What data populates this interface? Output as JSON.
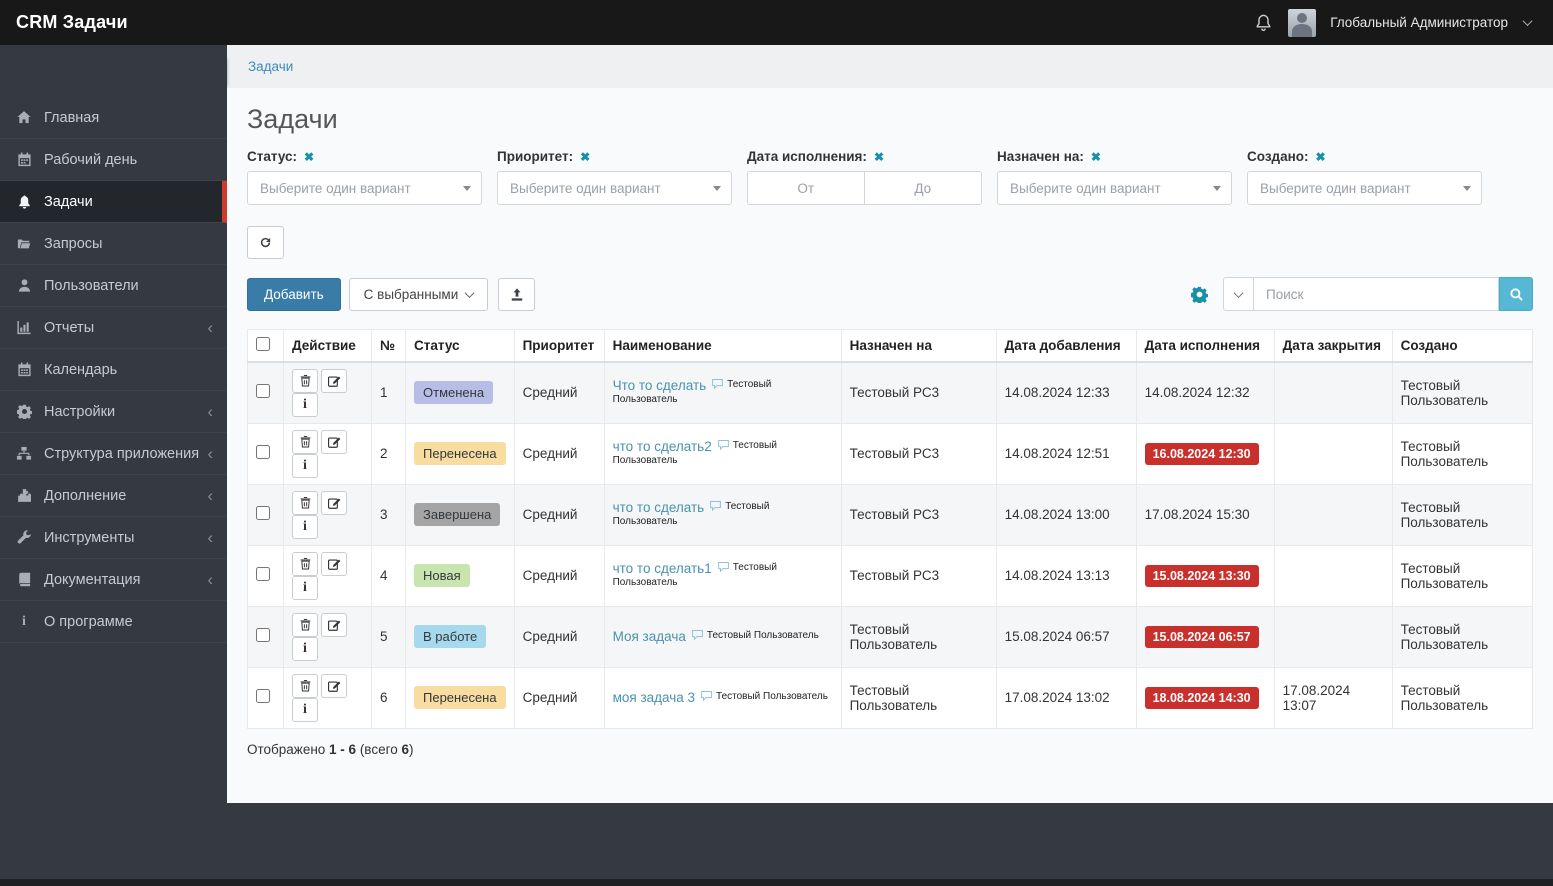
{
  "topbar": {
    "app_title": "CRM Задачи",
    "user_name": "Глобальный Администратор"
  },
  "sidebar": {
    "items": [
      {
        "label": "Главная",
        "icon": "home-icon",
        "active": false,
        "expandable": false
      },
      {
        "label": "Рабочий день",
        "icon": "calendar-day-icon",
        "active": false,
        "expandable": false
      },
      {
        "label": "Задачи",
        "icon": "bell-icon",
        "active": true,
        "expandable": false
      },
      {
        "label": "Запросы",
        "icon": "folder-open-icon",
        "active": false,
        "expandable": false
      },
      {
        "label": "Пользователи",
        "icon": "user-icon",
        "active": false,
        "expandable": false
      },
      {
        "label": "Отчеты",
        "icon": "bar-chart-icon",
        "active": false,
        "expandable": true
      },
      {
        "label": "Календарь",
        "icon": "calendar-icon",
        "active": false,
        "expandable": false
      },
      {
        "label": "Настройки",
        "icon": "gear-icon",
        "active": false,
        "expandable": true
      },
      {
        "label": "Структура приложения",
        "icon": "sitemap-icon",
        "active": false,
        "expandable": true
      },
      {
        "label": "Дополнение",
        "icon": "puzzle-icon",
        "active": false,
        "expandable": true
      },
      {
        "label": "Инструменты",
        "icon": "wrench-icon",
        "active": false,
        "expandable": true
      },
      {
        "label": "Документация",
        "icon": "book-icon",
        "active": false,
        "expandable": true
      },
      {
        "label": "О программе",
        "icon": "info-icon",
        "active": false,
        "expandable": false
      }
    ]
  },
  "breadcrumb": {
    "current": "Задачи"
  },
  "page": {
    "title": "Задачи"
  },
  "filters": {
    "status": {
      "label": "Статус:",
      "placeholder": "Выберите один вариант"
    },
    "priority": {
      "label": "Приоритет:",
      "placeholder": "Выберите один вариант"
    },
    "due_date": {
      "label": "Дата исполнения:",
      "from_placeholder": "От",
      "to_placeholder": "До"
    },
    "assigned": {
      "label": "Назначен на:",
      "placeholder": "Выберите один вариант"
    },
    "created": {
      "label": "Создано:",
      "placeholder": "Выберите один вариант"
    }
  },
  "toolbar": {
    "add_label": "Добавить",
    "with_selected_label": "С выбранными",
    "search_placeholder": "Поиск"
  },
  "table": {
    "columns": [
      "Действие",
      "№",
      "Статус",
      "Приоритет",
      "Наименование",
      "Назначен на",
      "Дата добавления",
      "Дата исполнения",
      "Дата закрытия",
      "Создано"
    ],
    "status_colors": {
      "Отменена": "#b6bde6",
      "Перенесена": "#f8dca0",
      "Завершена": "#a5a5a5",
      "Новая": "#c8e5b0",
      "В работе": "#a6d9ee"
    },
    "overdue_color": "#c9302c",
    "rows": [
      {
        "n": "1",
        "status": "Отменена",
        "priority": "Средний",
        "name": "Что то сделать",
        "comment_author": "Тестовый Пользователь",
        "assigned": "Тестовый РС3",
        "added": "14.08.2024 12:33",
        "due": "14.08.2024 12:32",
        "due_overdue": false,
        "closed": "",
        "created": "Тестовый Пользователь"
      },
      {
        "n": "2",
        "status": "Перенесена",
        "priority": "Средний",
        "name": "что то сделать2",
        "comment_author": "Тестовый Пользователь",
        "assigned": "Тестовый РС3",
        "added": "14.08.2024 12:51",
        "due": "16.08.2024 12:30",
        "due_overdue": true,
        "closed": "",
        "created": "Тестовый Пользователь"
      },
      {
        "n": "3",
        "status": "Завершена",
        "priority": "Средний",
        "name": "что то сделать",
        "comment_author": "Тестовый Пользователь",
        "assigned": "Тестовый РС3",
        "added": "14.08.2024 13:00",
        "due": "17.08.2024 15:30",
        "due_overdue": false,
        "closed": "",
        "created": "Тестовый Пользователь"
      },
      {
        "n": "4",
        "status": "Новая",
        "priority": "Средний",
        "name": "что то сделать1",
        "comment_author": "Тестовый Пользователь",
        "assigned": "Тестовый РС3",
        "added": "14.08.2024 13:13",
        "due": "15.08.2024 13:30",
        "due_overdue": true,
        "closed": "",
        "created": "Тестовый Пользователь"
      },
      {
        "n": "5",
        "status": "В работе",
        "priority": "Средний",
        "name": "Моя задача",
        "comment_author": "Тестовый Пользователь",
        "assigned": "Тестовый Пользователь",
        "added": "15.08.2024 06:57",
        "due": "15.08.2024 06:57",
        "due_overdue": true,
        "closed": "",
        "created": "Тестовый Пользователь"
      },
      {
        "n": "6",
        "status": "Перенесена",
        "priority": "Средний",
        "name": "моя задача 3",
        "comment_author": "Тестовый Пользователь",
        "assigned": "Тестовый Пользователь",
        "added": "17.08.2024 13:02",
        "due": "18.08.2024 14:30",
        "due_overdue": true,
        "closed": "17.08.2024 13:07",
        "created": "Тестовый Пользователь"
      }
    ]
  },
  "summary": {
    "prefix": "Отображено ",
    "range": "1 - 6",
    "total_label": " (всего ",
    "total": "6",
    "suffix": ")"
  }
}
